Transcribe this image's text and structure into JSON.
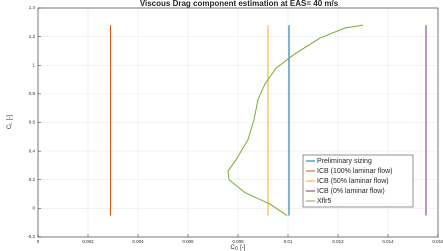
{
  "chart_data": {
    "type": "line",
    "title": "Viscous Drag component estimation at EAS= 40 m/s",
    "xlabel": {
      "main": "C",
      "sub": "D",
      "unit": "[-]"
    },
    "ylabel": {
      "main": "C",
      "sub": "L",
      "unit": "[-]"
    },
    "xlim": [
      0,
      0.016
    ],
    "xticks": [
      0,
      0.002,
      0.004,
      0.006,
      0.008,
      0.01,
      0.012,
      0.014,
      0.016
    ],
    "ylim": [
      -0.2,
      1.4
    ],
    "yticks": [
      -0.2,
      0,
      0.2,
      0.4,
      0.6,
      0.8,
      1,
      1.2,
      1.4
    ],
    "grid": true,
    "legend": "lower right",
    "series": [
      {
        "name": "Preliminary sizing",
        "color": "#0072bd",
        "x": [
          0.01004,
          0.01004
        ],
        "values": [
          -0.05,
          1.28
        ]
      },
      {
        "name": "ICB (100% laminar flow)",
        "color": "#d95319",
        "x": [
          0.0029,
          0.0029
        ],
        "values": [
          -0.05,
          1.28
        ]
      },
      {
        "name": "ICB (50% laminar flow)",
        "color": "#edb120",
        "x": [
          0.0092,
          0.0092
        ],
        "values": [
          -0.05,
          1.28
        ]
      },
      {
        "name": "ICB (0% laminar flow)",
        "color": "#7e2f8e",
        "x": [
          0.01552,
          0.01552
        ],
        "values": [
          -0.05,
          1.28
        ]
      },
      {
        "name": "Xflr5",
        "color": "#77ac30",
        "x": [
          0.00996,
          0.00928,
          0.00828,
          0.00764,
          0.0076,
          0.00792,
          0.0084,
          0.00864,
          0.0088,
          0.00908,
          0.00952,
          0.01028,
          0.01128,
          0.01228,
          0.013
        ],
        "values": [
          -0.05,
          0.03,
          0.11,
          0.2,
          0.26,
          0.34,
          0.48,
          0.62,
          0.76,
          0.87,
          0.98,
          1.08,
          1.19,
          1.26,
          1.28
        ]
      }
    ]
  }
}
